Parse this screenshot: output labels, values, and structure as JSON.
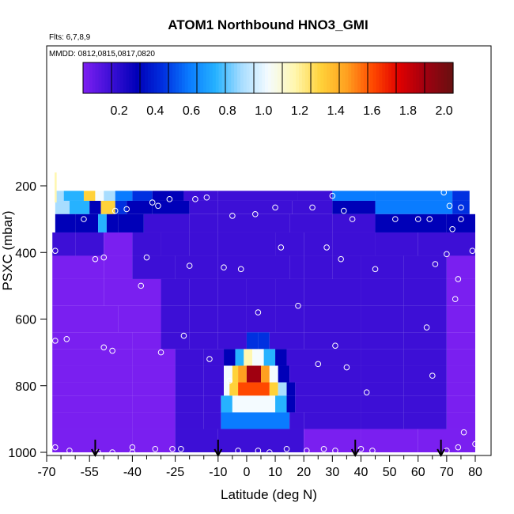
{
  "chart_data": {
    "type": "heatmap",
    "title": "ATOM1 Northbound HNO3_GMI",
    "annotations": [
      "Flts: 6,7,8,9",
      "MMDD: 0812,0815,0817,0820"
    ],
    "xlabel": "Latitude (deg N)",
    "ylabel": "PSXC (mbar)",
    "xlim": [
      -70,
      80
    ],
    "ylim": [
      1000,
      100
    ],
    "x_ticks": [
      "-70",
      "-55",
      "-40",
      "-25",
      "-10",
      "0",
      "10",
      "20",
      "30",
      "40",
      "50",
      "60",
      "70",
      "80"
    ],
    "x_minor_ticks": [
      "-65",
      "-60",
      "-50",
      "-45",
      "-35",
      "-30",
      "-20",
      "-15",
      "-5",
      "5",
      "15",
      "25",
      "35",
      "45",
      "55",
      "65",
      "75"
    ],
    "y_ticks": [
      "200",
      "400",
      "600",
      "800",
      "1000"
    ],
    "colorbar": {
      "range": [
        0.0,
        2.05
      ],
      "ticks": [
        "0.2",
        "0.4",
        "0.6",
        "0.8",
        "1.0",
        "1.2",
        "1.4",
        "1.6",
        "1.8",
        "2.0"
      ],
      "colors": [
        "#7a1ff0",
        "#3d0fd6",
        "#0000b8",
        "#0030e0",
        "#0a7cff",
        "#26b2ff",
        "#a8ddff",
        "#f4fbff",
        "#fff7b0",
        "#ffd23a",
        "#ffa020",
        "#ff4800",
        "#e00000",
        "#a00010",
        "#6a1010"
      ]
    },
    "arrow_latitudes": [
      -53,
      -10,
      38,
      68
    ],
    "rows": [
      {
        "p": [
          215,
          245
        ],
        "cells": [
          [
            -67,
            -64,
            0.95
          ],
          [
            -64,
            -57,
            0.8
          ],
          [
            -57,
            -53,
            1.35
          ],
          [
            -53,
            -50,
            1.0
          ],
          [
            -50,
            -46,
            0.85
          ],
          [
            -46,
            -40,
            0.6
          ],
          [
            -40,
            -33,
            0.45
          ],
          [
            -33,
            -22,
            0.3
          ],
          [
            -22,
            -10,
            0.25
          ],
          [
            -10,
            18,
            0.2
          ],
          [
            18,
            30,
            0.25
          ],
          [
            30,
            45,
            0.55
          ],
          [
            45,
            72,
            0.6
          ],
          [
            72,
            78,
            0.5
          ]
        ]
      },
      {
        "p": [
          245,
          285
        ],
        "cells": [
          [
            -67,
            -62,
            0.95
          ],
          [
            -62,
            -55,
            0.7
          ],
          [
            -55,
            -51,
            0.4
          ],
          [
            -51,
            -46,
            1.35
          ],
          [
            -46,
            -42,
            0.45
          ],
          [
            -42,
            -33,
            0.35
          ],
          [
            -33,
            -20,
            0.3
          ],
          [
            -20,
            -10,
            0.25
          ],
          [
            -10,
            16,
            0.2
          ],
          [
            16,
            30,
            0.22
          ],
          [
            30,
            45,
            0.35
          ],
          [
            45,
            72,
            0.55
          ],
          [
            72,
            78,
            0.45
          ]
        ]
      },
      {
        "p": [
          285,
          340
        ],
        "cells": [
          [
            -67,
            -60,
            0.3
          ],
          [
            -60,
            -52,
            0.3
          ],
          [
            -52,
            -49,
            0.75
          ],
          [
            -49,
            -45,
            0.3
          ],
          [
            -45,
            -36,
            0.3
          ],
          [
            -36,
            -20,
            0.25
          ],
          [
            -20,
            -10,
            0.25
          ],
          [
            -10,
            15,
            0.22
          ],
          [
            15,
            30,
            0.2
          ],
          [
            30,
            45,
            0.2
          ],
          [
            45,
            70,
            0.28
          ],
          [
            70,
            80,
            0.3
          ]
        ]
      },
      {
        "p": [
          340,
          410
        ],
        "cells": [
          [
            -68,
            -60,
            0.15
          ],
          [
            -60,
            -50,
            0.14
          ],
          [
            -50,
            -40,
            0.13
          ],
          [
            -40,
            -30,
            0.14
          ],
          [
            -30,
            -20,
            0.15
          ],
          [
            -20,
            -10,
            0.18
          ],
          [
            -10,
            10,
            0.22
          ],
          [
            10,
            20,
            0.18
          ],
          [
            20,
            30,
            0.2
          ],
          [
            30,
            45,
            0.25
          ],
          [
            45,
            60,
            0.2
          ],
          [
            60,
            80,
            0.16
          ]
        ]
      },
      {
        "p": [
          410,
          480
        ],
        "cells": [
          [
            -68,
            -50,
            0.12
          ],
          [
            -50,
            -40,
            0.13
          ],
          [
            -40,
            -25,
            0.15
          ],
          [
            -25,
            -10,
            0.17
          ],
          [
            -10,
            5,
            0.2
          ],
          [
            5,
            15,
            0.22
          ],
          [
            15,
            20,
            0.2
          ],
          [
            20,
            30,
            0.22
          ],
          [
            30,
            40,
            0.25
          ],
          [
            40,
            55,
            0.2
          ],
          [
            55,
            70,
            0.16
          ],
          [
            70,
            80,
            0.13
          ]
        ]
      },
      {
        "p": [
          480,
          560
        ],
        "cells": [
          [
            -68,
            -50,
            0.12
          ],
          [
            -50,
            -30,
            0.13
          ],
          [
            -30,
            -20,
            0.15
          ],
          [
            -20,
            -10,
            0.18
          ],
          [
            -10,
            0,
            0.2
          ],
          [
            0,
            10,
            0.22
          ],
          [
            10,
            20,
            0.2
          ],
          [
            20,
            40,
            0.22
          ],
          [
            40,
            55,
            0.2
          ],
          [
            55,
            70,
            0.15
          ],
          [
            70,
            80,
            0.13
          ]
        ]
      },
      {
        "p": [
          560,
          640
        ],
        "cells": [
          [
            -68,
            -45,
            0.12
          ],
          [
            -45,
            -30,
            0.13
          ],
          [
            -30,
            -20,
            0.15
          ],
          [
            -20,
            -10,
            0.18
          ],
          [
            -10,
            0,
            0.22
          ],
          [
            0,
            10,
            0.25
          ],
          [
            10,
            20,
            0.22
          ],
          [
            20,
            40,
            0.22
          ],
          [
            40,
            55,
            0.2
          ],
          [
            55,
            70,
            0.15
          ],
          [
            70,
            80,
            0.13
          ]
        ]
      },
      {
        "p": [
          640,
          690
        ],
        "cells": [
          [
            -68,
            -40,
            0.12
          ],
          [
            -40,
            -30,
            0.13
          ],
          [
            -30,
            -20,
            0.14
          ],
          [
            -20,
            -10,
            0.2
          ],
          [
            -10,
            0,
            0.25
          ],
          [
            0,
            4,
            0.5
          ],
          [
            4,
            8,
            0.45
          ],
          [
            8,
            20,
            0.22
          ],
          [
            20,
            40,
            0.22
          ],
          [
            40,
            55,
            0.2
          ],
          [
            55,
            70,
            0.15
          ],
          [
            70,
            80,
            0.13
          ]
        ]
      },
      {
        "p": [
          690,
          740
        ],
        "cells": [
          [
            -68,
            -40,
            0.12
          ],
          [
            -40,
            -25,
            0.13
          ],
          [
            -25,
            -15,
            0.15
          ],
          [
            -15,
            -8,
            0.2
          ],
          [
            -8,
            -4,
            0.35
          ],
          [
            -4,
            -1,
            0.8
          ],
          [
            -1,
            2,
            1.1
          ],
          [
            2,
            6,
            1.0
          ],
          [
            6,
            10,
            0.8
          ],
          [
            10,
            14,
            0.3
          ],
          [
            14,
            40,
            0.22
          ],
          [
            40,
            55,
            0.2
          ],
          [
            55,
            70,
            0.14
          ],
          [
            70,
            80,
            0.12
          ]
        ]
      },
      {
        "p": [
          740,
          790
        ],
        "cells": [
          [
            -68,
            -40,
            0.12
          ],
          [
            -40,
            -25,
            0.13
          ],
          [
            -25,
            -15,
            0.17
          ],
          [
            -15,
            -8,
            0.22
          ],
          [
            -8,
            -5,
            1.0
          ],
          [
            -5,
            -3,
            1.3
          ],
          [
            -3,
            0,
            1.5
          ],
          [
            0,
            5,
            1.85
          ],
          [
            5,
            8,
            1.5
          ],
          [
            8,
            11,
            1.0
          ],
          [
            11,
            15,
            0.4
          ],
          [
            15,
            40,
            0.22
          ],
          [
            40,
            55,
            0.2
          ],
          [
            55,
            70,
            0.14
          ],
          [
            70,
            80,
            0.12
          ]
        ]
      },
      {
        "p": [
          790,
          830
        ],
        "cells": [
          [
            -68,
            -40,
            0.12
          ],
          [
            -40,
            -25,
            0.13
          ],
          [
            -25,
            -15,
            0.17
          ],
          [
            -15,
            -8,
            0.22
          ],
          [
            -8,
            -6,
            1.0
          ],
          [
            -6,
            -3,
            1.3
          ],
          [
            -3,
            8,
            1.6
          ],
          [
            8,
            11,
            1.3
          ],
          [
            11,
            14,
            0.9
          ],
          [
            14,
            17,
            0.3
          ],
          [
            17,
            40,
            0.2
          ],
          [
            40,
            55,
            0.18
          ],
          [
            55,
            70,
            0.14
          ],
          [
            70,
            80,
            0.12
          ]
        ]
      },
      {
        "p": [
          830,
          880
        ],
        "cells": [
          [
            -68,
            -40,
            0.12
          ],
          [
            -40,
            -25,
            0.13
          ],
          [
            -25,
            -15,
            0.17
          ],
          [
            -15,
            -9,
            0.25
          ],
          [
            -9,
            -5,
            0.8
          ],
          [
            -5,
            10,
            0.98
          ],
          [
            10,
            14,
            0.8
          ],
          [
            14,
            17,
            0.4
          ],
          [
            17,
            40,
            0.2
          ],
          [
            40,
            55,
            0.18
          ],
          [
            55,
            70,
            0.14
          ],
          [
            70,
            80,
            0.12
          ]
        ]
      },
      {
        "p": [
          880,
          930
        ],
        "cells": [
          [
            -68,
            -40,
            0.12
          ],
          [
            -40,
            -25,
            0.13
          ],
          [
            -25,
            -15,
            0.17
          ],
          [
            -15,
            -9,
            0.2
          ],
          [
            -9,
            15,
            0.55
          ],
          [
            15,
            20,
            0.22
          ],
          [
            20,
            40,
            0.2
          ],
          [
            40,
            55,
            0.16
          ],
          [
            55,
            70,
            0.14
          ],
          [
            70,
            80,
            0.12
          ]
        ]
      },
      {
        "p": [
          930,
          1000
        ],
        "cells": [
          [
            -68,
            -40,
            0.12
          ],
          [
            -40,
            -25,
            0.13
          ],
          [
            -25,
            -10,
            0.14
          ],
          [
            -10,
            5,
            0.15
          ],
          [
            5,
            20,
            0.14
          ],
          [
            20,
            40,
            0.13
          ],
          [
            40,
            60,
            0.13
          ],
          [
            60,
            80,
            0.12
          ]
        ]
      }
    ],
    "thin_strips": [
      {
        "lat": [
          -67.2,
          -66.5
        ],
        "p": [
          160,
          215
        ],
        "value": 1.15
      },
      {
        "lat": [
          -67.2,
          -66.5
        ],
        "p": [
          215,
          250
        ],
        "value": 1.1
      }
    ],
    "points": [
      [
        -67,
        395
      ],
      [
        -67,
        665
      ],
      [
        -67,
        985
      ],
      [
        -63,
        660
      ],
      [
        -62,
        995
      ],
      [
        -57,
        300
      ],
      [
        -52,
        1000
      ],
      [
        -50,
        685
      ],
      [
        -47,
        695
      ],
      [
        -53,
        420
      ],
      [
        -50,
        415
      ],
      [
        -46,
        275
      ],
      [
        -47,
        1000
      ],
      [
        -42,
        270
      ],
      [
        -40,
        985
      ],
      [
        -40,
        1000
      ],
      [
        -37,
        500
      ],
      [
        -35,
        415
      ],
      [
        -33,
        250
      ],
      [
        -31,
        260
      ],
      [
        -32,
        990
      ],
      [
        -30,
        700
      ],
      [
        -27,
        240
      ],
      [
        -26,
        990
      ],
      [
        -23,
        990
      ],
      [
        -22,
        650
      ],
      [
        -20,
        440
      ],
      [
        -18,
        240
      ],
      [
        -14,
        235
      ],
      [
        -13,
        720
      ],
      [
        -8,
        445
      ],
      [
        -6,
        785
      ],
      [
        -5,
        290
      ],
      [
        -2,
        450
      ],
      [
        -3,
        995
      ],
      [
        3,
        285
      ],
      [
        4,
        580
      ],
      [
        4,
        995
      ],
      [
        8,
        1000
      ],
      [
        10,
        265
      ],
      [
        12,
        385
      ],
      [
        14,
        990
      ],
      [
        18,
        560
      ],
      [
        21,
        995
      ],
      [
        23,
        265
      ],
      [
        25,
        735
      ],
      [
        27,
        990
      ],
      [
        28,
        385
      ],
      [
        30,
        230
      ],
      [
        31,
        680
      ],
      [
        31,
        995
      ],
      [
        33,
        420
      ],
      [
        34,
        275
      ],
      [
        35,
        745
      ],
      [
        37,
        300
      ],
      [
        40,
        990
      ],
      [
        42,
        820
      ],
      [
        45,
        450
      ],
      [
        44,
        995
      ],
      [
        52,
        300
      ],
      [
        60,
        300
      ],
      [
        63,
        625
      ],
      [
        64,
        300
      ],
      [
        65,
        770
      ],
      [
        66,
        435
      ],
      [
        69,
        220
      ],
      [
        70,
        405
      ],
      [
        70,
        995
      ],
      [
        71,
        260
      ],
      [
        72,
        330
      ],
      [
        73,
        540
      ],
      [
        74,
        480
      ],
      [
        74,
        985
      ],
      [
        75,
        265
      ],
      [
        75,
        300
      ],
      [
        76,
        940
      ],
      [
        79,
        395
      ],
      [
        80,
        975
      ]
    ]
  }
}
